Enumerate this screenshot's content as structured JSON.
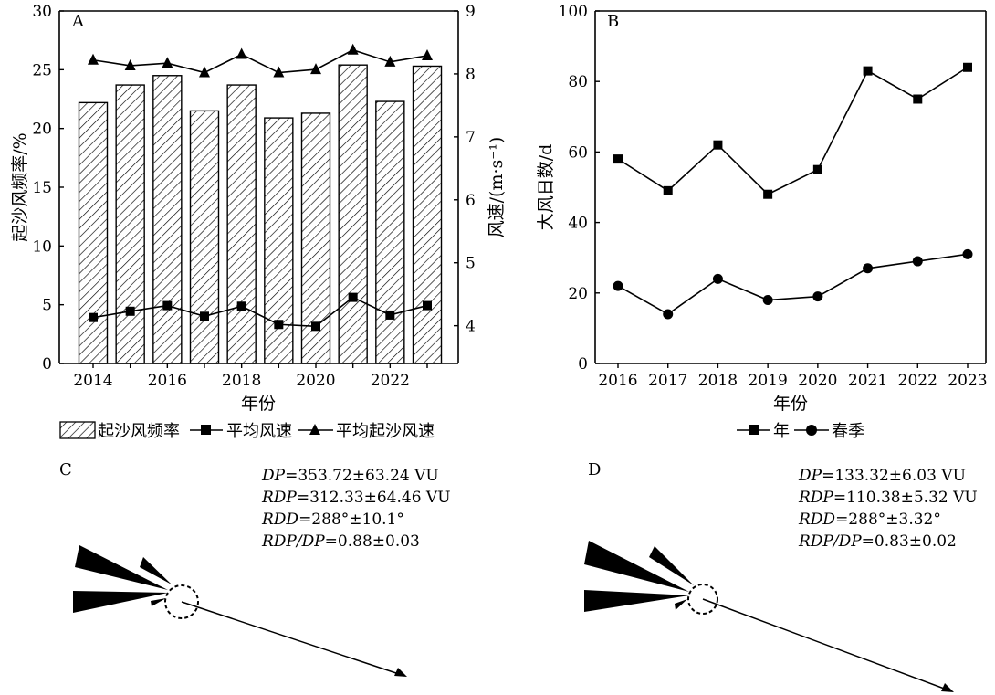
{
  "chart_data": [
    {
      "panel": "A",
      "type": "bar",
      "categories": [
        2014,
        2015,
        2016,
        2017,
        2018,
        2019,
        2020,
        2021,
        2022,
        2023
      ],
      "xticks": [
        "2014",
        "2016",
        "2018",
        "2020",
        "2022"
      ],
      "xlabel": "年份",
      "ylabel": "起沙风频率/%",
      "ylabel2": "风速/(m·s⁻¹)",
      "ylim": [
        0,
        30
      ],
      "yticks": [
        0,
        5,
        10,
        15,
        20,
        25,
        30
      ],
      "ylim2": [
        3.4,
        9
      ],
      "yticks2": [
        4,
        5,
        6,
        7,
        8,
        9
      ],
      "series": [
        {
          "name": "起沙风频率",
          "type": "bar",
          "axis": "left",
          "values": [
            22.2,
            23.7,
            24.5,
            21.5,
            23.7,
            20.9,
            21.3,
            25.4,
            22.3,
            25.3
          ]
        },
        {
          "name": "平均风速",
          "type": "line",
          "marker": "square",
          "axis": "right",
          "values": [
            4.13,
            4.23,
            4.32,
            4.15,
            4.31,
            4.02,
            3.99,
            4.45,
            4.17,
            4.32
          ]
        },
        {
          "name": "平均起沙风速",
          "type": "line",
          "marker": "triangle",
          "axis": "right",
          "values": [
            8.22,
            8.13,
            8.17,
            8.02,
            8.31,
            8.02,
            8.07,
            8.38,
            8.19,
            8.29
          ]
        }
      ],
      "legend": [
        "起沙风频率",
        "平均风速",
        "平均起沙风速"
      ],
      "legend_position": "bottom"
    },
    {
      "panel": "B",
      "type": "line",
      "x": [
        2016,
        2017,
        2018,
        2019,
        2020,
        2021,
        2022,
        2023
      ],
      "xticks": [
        "2016",
        "2017",
        "2018",
        "2019",
        "2020",
        "2021",
        "2022",
        "2023"
      ],
      "xlabel": "年份",
      "ylabel": "大风日数/d",
      "ylim": [
        0,
        100
      ],
      "yticks": [
        0,
        20,
        40,
        60,
        80,
        100
      ],
      "series": [
        {
          "name": "年",
          "marker": "square",
          "values": [
            58,
            49,
            62,
            48,
            55,
            83,
            75,
            84
          ]
        },
        {
          "name": "春季",
          "marker": "circle",
          "values": [
            22,
            14,
            24,
            18,
            19,
            27,
            29,
            31
          ]
        }
      ],
      "legend": [
        "年",
        "春季"
      ],
      "legend_position": "bottom"
    }
  ],
  "panels": {
    "A": "A",
    "B": "B",
    "C": "C",
    "D": "D"
  },
  "roses": [
    {
      "panel": "C",
      "stats": [
        {
          "name": "DP",
          "value": "=353.72±63.24 VU"
        },
        {
          "name": "RDP",
          "value": "=312.33±64.46 VU"
        },
        {
          "name": "RDD",
          "value": "=288°±10.1°"
        },
        {
          "name": "RDP/DP",
          "value": "=0.88±0.03"
        }
      ],
      "resultant_direction_deg": 288
    },
    {
      "panel": "D",
      "stats": [
        {
          "name": "DP",
          "value": "=133.32±6.03 VU"
        },
        {
          "name": "RDP",
          "value": "=110.38±5.32 VU"
        },
        {
          "name": "RDD",
          "value": "=288°±3.32°"
        },
        {
          "name": "RDP/DP",
          "value": "=0.83±0.02"
        }
      ],
      "resultant_direction_deg": 288
    }
  ]
}
